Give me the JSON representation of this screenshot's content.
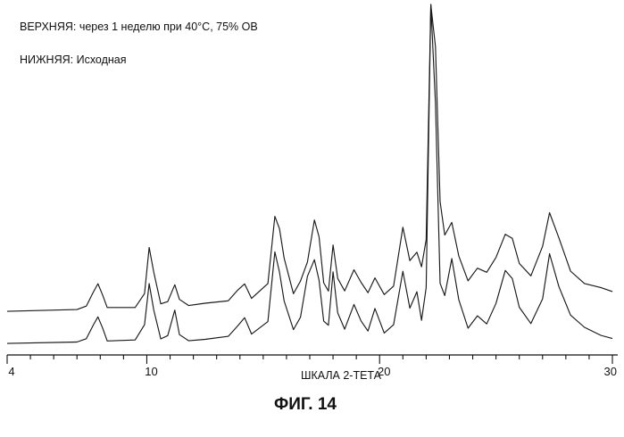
{
  "chart_data": {
    "type": "line",
    "legend": {
      "upper": "ВЕРХНЯЯ: через  1 неделю при 40°C, 75% ОВ",
      "lower": "НИЖНЯЯ: Исходная"
    },
    "xlabel": "ШКАЛА 2-ТЕТА",
    "caption": "ФИГ. 14",
    "xlim": [
      4,
      30
    ],
    "x_ticks": [
      4,
      10,
      20,
      30
    ],
    "x_tick_labels": [
      "4",
      "10",
      "20",
      "30"
    ],
    "series": [
      {
        "key": "upper",
        "x": [
          4.0,
          7.0,
          7.4,
          7.7,
          7.9,
          8.1,
          8.3,
          9.5,
          9.9,
          10.1,
          10.3,
          10.6,
          10.9,
          11.2,
          11.4,
          11.8,
          12.5,
          13.5,
          13.9,
          14.2,
          14.5,
          15.2,
          15.5,
          15.7,
          15.9,
          16.3,
          16.6,
          16.9,
          17.2,
          17.4,
          17.6,
          17.8,
          18.0,
          18.2,
          18.5,
          18.9,
          19.2,
          19.5,
          19.8,
          20.2,
          20.6,
          21.0,
          21.3,
          21.6,
          21.8,
          22.0,
          22.2,
          22.4,
          22.6,
          22.8,
          23.1,
          23.4,
          23.8,
          24.2,
          24.6,
          25.0,
          25.4,
          25.7,
          26.0,
          26.5,
          27.0,
          27.3,
          27.7,
          28.2,
          28.8,
          29.5,
          30.0
        ],
        "y": [
          0.2,
          0.4,
          1.2,
          4.5,
          6.5,
          3.8,
          0.8,
          0.7,
          4.0,
          15.0,
          9.0,
          1.5,
          2.0,
          6.0,
          2.5,
          1.0,
          1.5,
          2.0,
          4.5,
          6.0,
          2.5,
          6.0,
          22.0,
          19.0,
          12.0,
          3.5,
          6.5,
          11.0,
          21.0,
          17.0,
          6.0,
          4.0,
          15.0,
          7.0,
          4.0,
          9.0,
          6.0,
          3.5,
          7.0,
          3.0,
          5.0,
          19.0,
          11.0,
          13.0,
          9.5,
          16.0,
          72.0,
          62.0,
          25.0,
          17.0,
          20.0,
          12.0,
          6.0,
          9.0,
          8.0,
          11.5,
          17.0,
          16.0,
          10.0,
          7.0,
          14.0,
          22.0,
          16.0,
          8.0,
          5.0,
          4.0,
          3.0
        ]
      },
      {
        "key": "lower",
        "x": [
          4.0,
          7.0,
          7.4,
          7.7,
          7.9,
          8.1,
          8.3,
          9.5,
          9.9,
          10.1,
          10.3,
          10.6,
          10.9,
          11.2,
          11.4,
          11.8,
          12.5,
          13.5,
          13.9,
          14.2,
          14.5,
          15.2,
          15.5,
          15.7,
          15.9,
          16.3,
          16.6,
          16.9,
          17.2,
          17.4,
          17.6,
          17.8,
          18.0,
          18.2,
          18.5,
          18.9,
          19.2,
          19.5,
          19.8,
          20.2,
          20.6,
          21.0,
          21.3,
          21.6,
          21.8,
          22.0,
          22.2,
          22.4,
          22.6,
          22.8,
          23.1,
          23.4,
          23.8,
          24.2,
          24.6,
          25.0,
          25.4,
          25.7,
          26.0,
          26.5,
          27.0,
          27.3,
          27.7,
          28.2,
          28.8,
          29.5,
          30.0
        ],
        "y": [
          0.2,
          0.4,
          1.2,
          4.5,
          6.5,
          3.8,
          0.6,
          0.8,
          4.5,
          14.5,
          8.0,
          1.0,
          1.8,
          8.0,
          2.0,
          0.5,
          0.8,
          1.5,
          4.0,
          6.0,
          2.0,
          5.0,
          22.0,
          17.0,
          10.0,
          3.0,
          6.0,
          16.0,
          20.0,
          15.0,
          5.0,
          4.0,
          17.0,
          7.0,
          3.0,
          9.0,
          5.0,
          2.5,
          8.0,
          2.0,
          4.0,
          17.0,
          8.0,
          12.0,
          5.0,
          13.0,
          82.0,
          58.0,
          14.0,
          11.0,
          20.0,
          10.0,
          3.0,
          6.0,
          4.0,
          9.0,
          17.0,
          15.0,
          8.0,
          4.0,
          10.0,
          21.0,
          13.0,
          6.0,
          3.0,
          1.0,
          0.2
        ]
      }
    ]
  }
}
